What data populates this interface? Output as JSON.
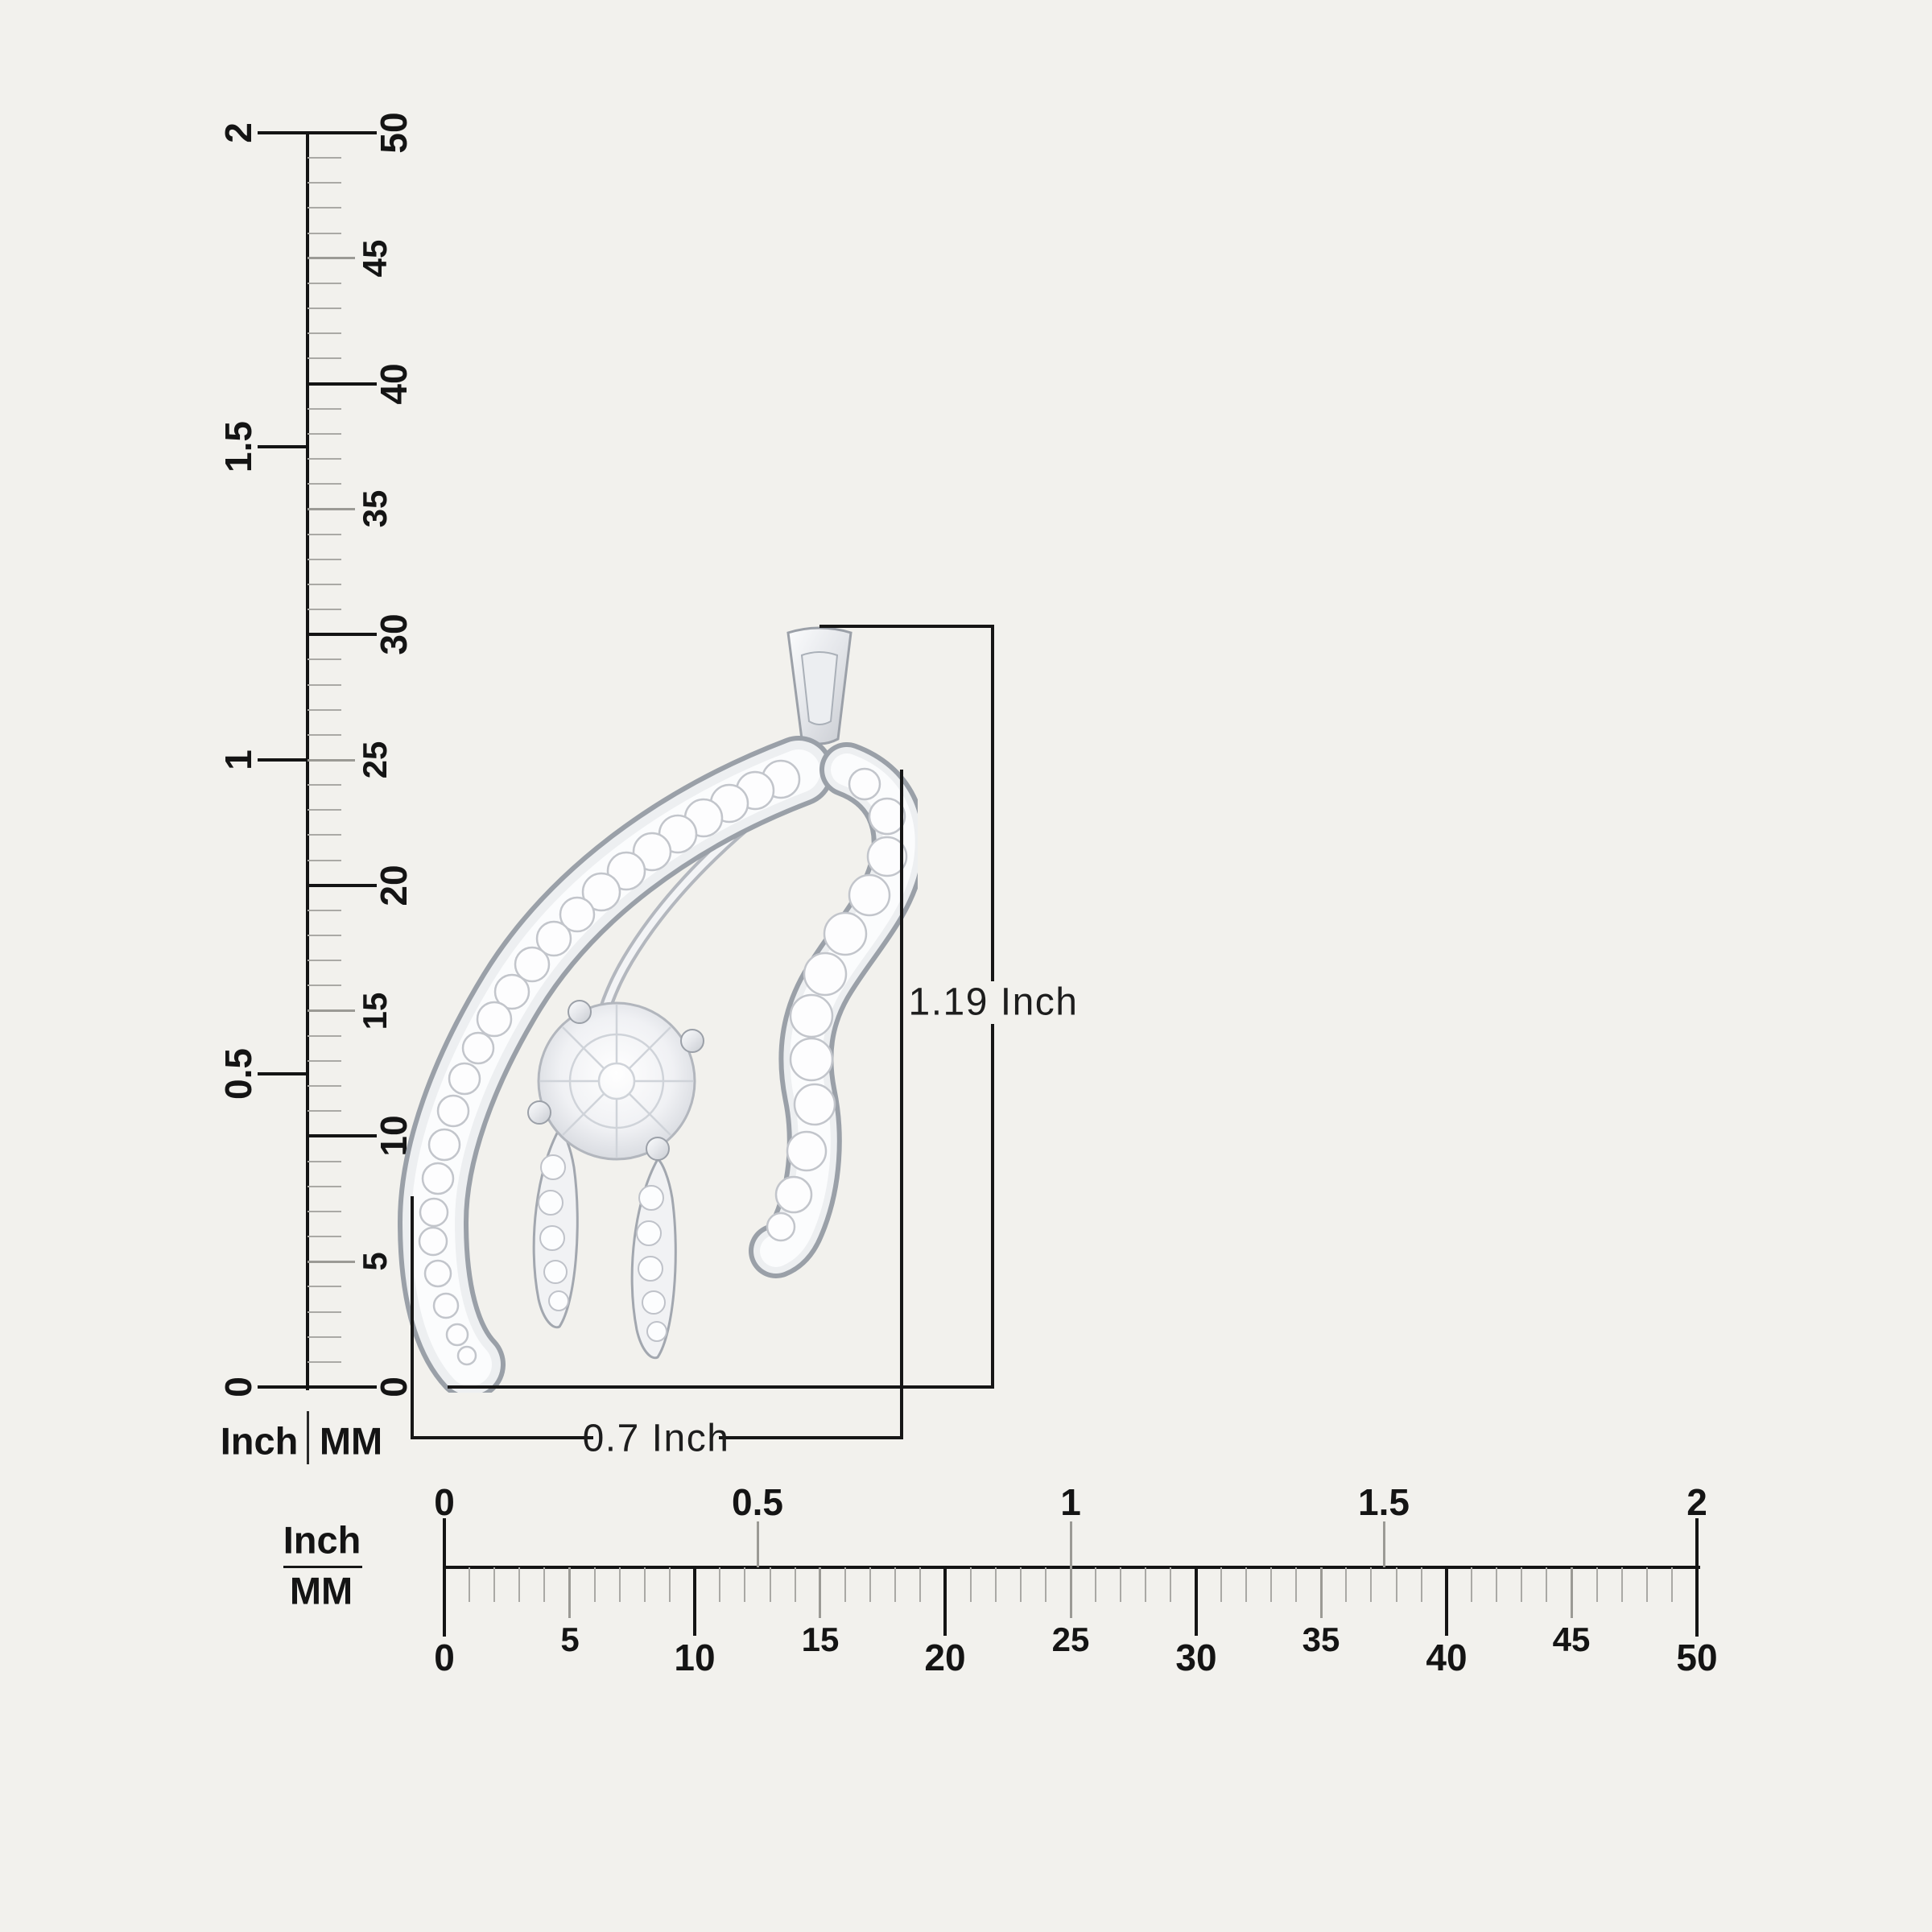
{
  "colors": {
    "background": "#f2f1ed",
    "line": "#141414",
    "tick_minor": "#aaa9a5",
    "tick_medium": "#9b9a95",
    "metal": "#d7d9dd"
  },
  "vertical_ruler": {
    "inch_labels": [
      "0",
      "0.5",
      "1",
      "1.5",
      "2"
    ],
    "mm_labels": [
      "0",
      "5",
      "10",
      "15",
      "20",
      "25",
      "30",
      "35",
      "40",
      "45",
      "50"
    ],
    "footer": {
      "inch": "Inch",
      "mm": "MM"
    }
  },
  "horizontal_ruler": {
    "inch_labels": [
      "0",
      "0.5",
      "1",
      "1.5",
      "2"
    ],
    "mm_labels": [
      "0",
      "5",
      "10",
      "15",
      "20",
      "25",
      "30",
      "35",
      "40",
      "45",
      "50"
    ],
    "unit_fraction": {
      "top": "Inch",
      "bottom": "MM"
    }
  },
  "dimensions": {
    "height": "1.19 Inch",
    "width": "0.7 Inch"
  },
  "product": {
    "type": "diamond-pendant"
  }
}
